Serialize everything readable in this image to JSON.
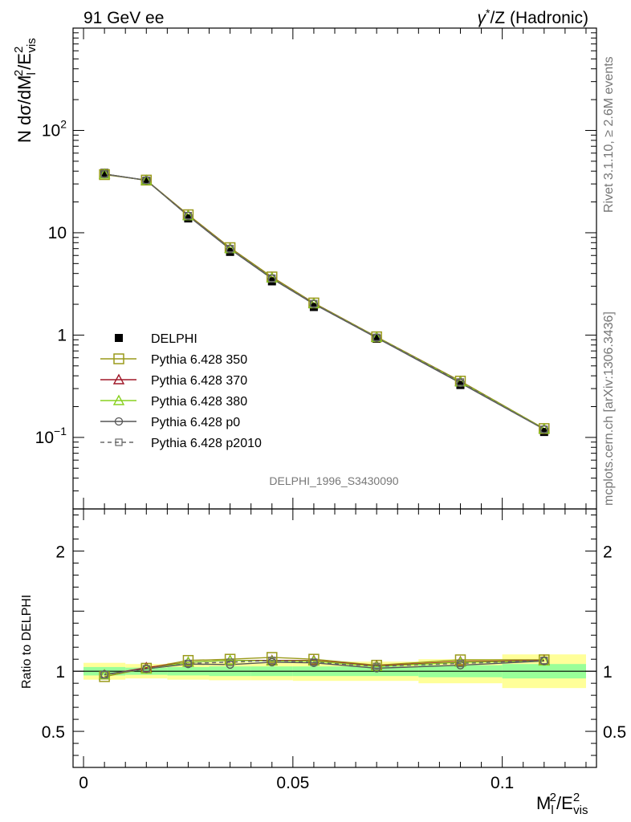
{
  "header": {
    "left": "91 GeV ee",
    "right_prefix": "γ",
    "right_sup": "*",
    "right_suffix": "/Z (Hadronic)"
  },
  "side_labels": {
    "rivet": "Rivet 3.1.10, ≥ 2.6M events",
    "mcplots": "mcplots.cern.ch [arXiv:1306.3436]"
  },
  "analysis_id": "DELPHI_1996_S3430090",
  "colors": {
    "data": "#000000",
    "p350": "#9a9a1a",
    "p370": "#a01828",
    "p380": "#88d020",
    "p0": "#555555",
    "p2010": "#666666",
    "band_inner": "#99ff99",
    "band_outer": "#ffff99"
  },
  "chart_data": [
    {
      "type": "line",
      "yscale": "log",
      "ylim": [
        0.02,
        1000
      ],
      "xlim": [
        -0.0025,
        0.1225
      ],
      "ylabel": {
        "main": "N dσ/dM",
        "sub1": "l",
        "sup1": "2",
        "mid": "/E",
        "sup2": "2",
        "sub2": "vis"
      },
      "y_ticks": [
        {
          "value": 100,
          "base": "10",
          "exp": "2"
        },
        {
          "value": 10,
          "base": "10",
          "exp": ""
        },
        {
          "value": 1,
          "base": "1",
          "exp": ""
        },
        {
          "value": 0.1,
          "base": "10",
          "exp": "−1"
        }
      ],
      "x": [
        0.005,
        0.015,
        0.025,
        0.035,
        0.045,
        0.055,
        0.07,
        0.09,
        0.11
      ],
      "data": {
        "name": "DELPHI",
        "values": [
          38.5,
          32.0,
          13.8,
          6.5,
          3.35,
          1.88,
          0.92,
          0.325,
          0.113
        ]
      },
      "series": [
        {
          "key": "p350",
          "name": "Pythia 6.428 350",
          "marker": "square-open",
          "dash": false,
          "values": [
            37.0,
            32.7,
            15.0,
            7.15,
            3.7,
            2.06,
            0.962,
            0.355,
            0.122
          ]
        },
        {
          "key": "p370",
          "name": "Pythia 6.428 370",
          "marker": "triangle-open",
          "dash": false,
          "values": [
            37.5,
            32.5,
            14.8,
            7.05,
            3.64,
            2.04,
            0.955,
            0.352,
            0.121
          ]
        },
        {
          "key": "p380",
          "name": "Pythia 6.428 380",
          "marker": "triangle-open",
          "dash": false,
          "values": [
            37.5,
            32.5,
            14.7,
            7.0,
            3.62,
            2.03,
            0.952,
            0.35,
            0.121
          ]
        },
        {
          "key": "p0",
          "name": "Pythia 6.428 p0",
          "marker": "circle-open",
          "dash": false,
          "values": [
            37.5,
            32.6,
            14.6,
            6.9,
            3.56,
            2.01,
            0.94,
            0.34,
            0.12
          ]
        },
        {
          "key": "p2010",
          "name": "Pythia 6.428 p2010",
          "marker": "square-small-open",
          "dash": true,
          "values": [
            37.5,
            32.6,
            14.7,
            7.0,
            3.6,
            2.03,
            0.95,
            0.348,
            0.12
          ]
        }
      ]
    },
    {
      "type": "line",
      "ylim": [
        0.2,
        2.35
      ],
      "ylabel": "Ratio to DELPHI",
      "xlabel": {
        "main": "M",
        "sub1": "l",
        "sup1": "2",
        "mid": "/E",
        "sup2": "2",
        "sub2": "vis"
      },
      "y_tick_labels": [
        {
          "value": 0.5,
          "label": "0.5"
        },
        {
          "value": 1,
          "label": "1"
        },
        {
          "value": 2,
          "label": "2"
        }
      ],
      "x_tick_labels": [
        {
          "value": 0,
          "label": "0"
        },
        {
          "value": 0.05,
          "label": "0.05"
        },
        {
          "value": 0.1,
          "label": "0.1"
        }
      ],
      "bins": [
        {
          "lo": 0.0,
          "hi": 0.01,
          "inner": 0.035,
          "outer": 0.07
        },
        {
          "lo": 0.01,
          "hi": 0.02,
          "inner": 0.03,
          "outer": 0.06
        },
        {
          "lo": 0.02,
          "hi": 0.03,
          "inner": 0.035,
          "outer": 0.07
        },
        {
          "lo": 0.03,
          "hi": 0.04,
          "inner": 0.04,
          "outer": 0.075
        },
        {
          "lo": 0.04,
          "hi": 0.05,
          "inner": 0.04,
          "outer": 0.075
        },
        {
          "lo": 0.05,
          "hi": 0.06,
          "inner": 0.04,
          "outer": 0.08
        },
        {
          "lo": 0.06,
          "hi": 0.08,
          "inner": 0.04,
          "outer": 0.08
        },
        {
          "lo": 0.08,
          "hi": 0.1,
          "inner": 0.05,
          "outer": 0.1
        },
        {
          "lo": 0.1,
          "hi": 0.12,
          "inner": 0.06,
          "outer": 0.14
        }
      ],
      "series": [
        {
          "key": "p350",
          "values": [
            0.955,
            1.025,
            1.09,
            1.1,
            1.115,
            1.1,
            1.05,
            1.095,
            1.095
          ]
        },
        {
          "key": "p370",
          "values": [
            0.97,
            1.03,
            1.075,
            1.09,
            1.09,
            1.09,
            1.045,
            1.08,
            1.09
          ]
        },
        {
          "key": "p380",
          "values": [
            0.97,
            1.02,
            1.075,
            1.09,
            1.085,
            1.085,
            1.04,
            1.075,
            1.085
          ]
        },
        {
          "key": "p0",
          "values": [
            0.975,
            1.02,
            1.06,
            1.055,
            1.075,
            1.07,
            1.025,
            1.05,
            1.085
          ]
        },
        {
          "key": "p2010",
          "values": [
            0.97,
            1.02,
            1.065,
            1.075,
            1.09,
            1.075,
            1.04,
            1.065,
            1.09
          ]
        }
      ]
    }
  ]
}
